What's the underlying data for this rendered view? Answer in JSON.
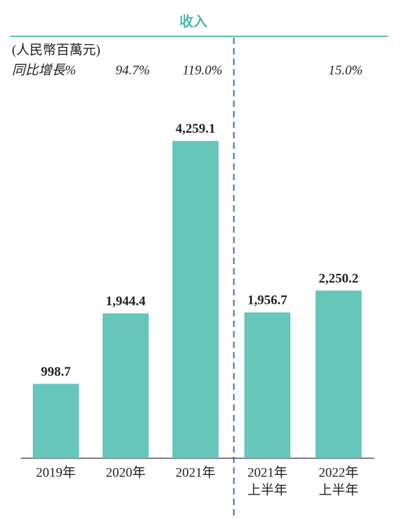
{
  "chart_data": {
    "type": "bar",
    "title": "收入",
    "unit": "(人民幣百萬元)",
    "categories": [
      [
        "2019年"
      ],
      [
        "2020年"
      ],
      [
        "2021年"
      ],
      [
        "2021年",
        "上半年"
      ],
      [
        "2022年",
        "上半年"
      ]
    ],
    "values": [
      998.7,
      1944.4,
      4259.1,
      1956.7,
      2250.2
    ],
    "value_labels": [
      "998.7",
      "1,944.4",
      "4,259.1",
      "1,956.7",
      "2,250.2"
    ],
    "color": "#66c6ba",
    "growth": {
      "label": "同比增長%",
      "values": [
        null,
        94.7,
        119.0,
        null,
        15.0
      ],
      "value_labels": [
        null,
        "94.7%",
        "119.0%",
        null,
        "15.0%"
      ]
    },
    "ylim": [
      0,
      4500
    ]
  }
}
